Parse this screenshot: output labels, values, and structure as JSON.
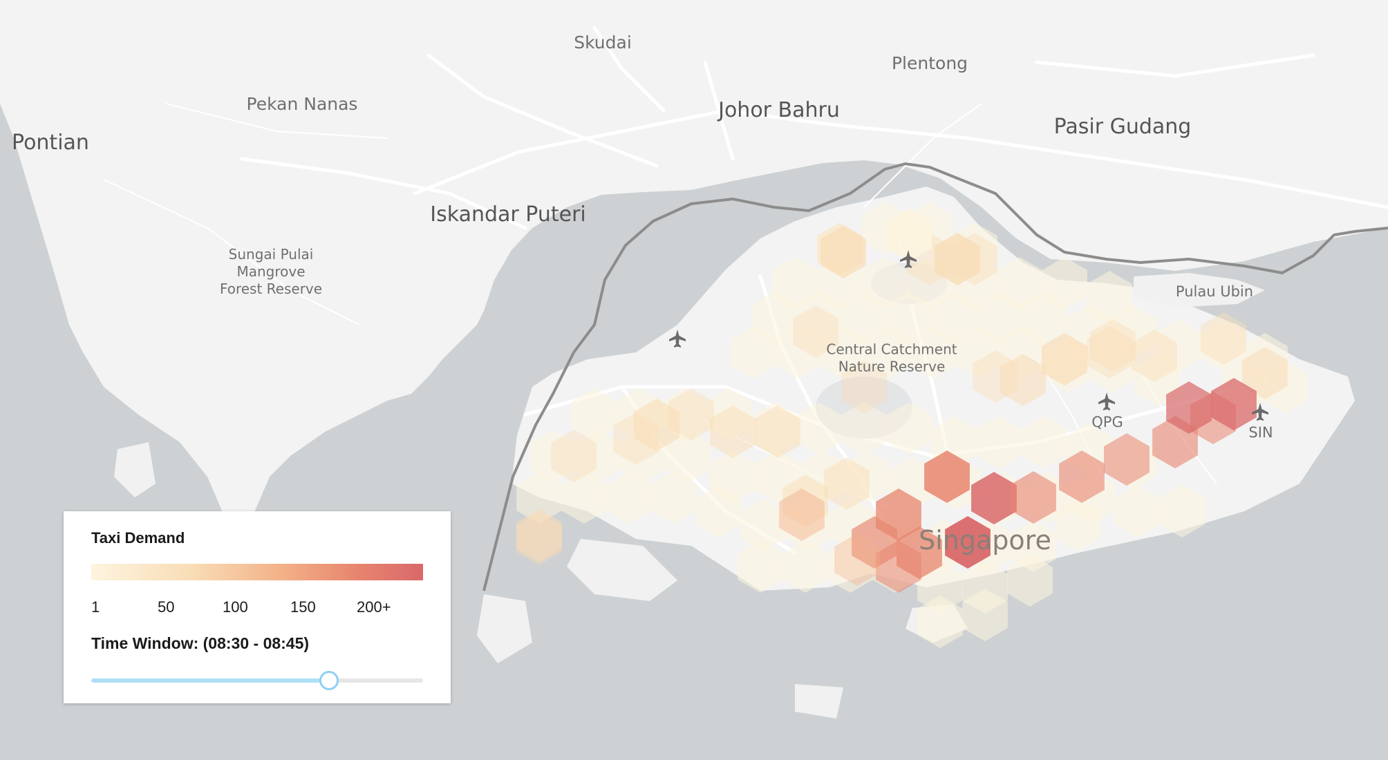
{
  "map": {
    "places": [
      {
        "key": "skudai",
        "label": "Skudai"
      },
      {
        "key": "plentong",
        "label": "Plentong"
      },
      {
        "key": "pekan-nanas",
        "label": "Pekan Nanas"
      },
      {
        "key": "johor-bahru",
        "label": "Johor Bahru"
      },
      {
        "key": "pasir-gudang",
        "label": "Pasir Gudang"
      },
      {
        "key": "pontian",
        "label": "Pontian"
      },
      {
        "key": "iskandar-puteri",
        "label": "Iskandar Puteri"
      },
      {
        "key": "pulau-ubin",
        "label": "Pulau Ubin"
      },
      {
        "key": "central-catchment",
        "label": [
          "Central Catchment",
          "Nature Reserve"
        ]
      },
      {
        "key": "sungai-pulai",
        "label": [
          "Sungai Pulai",
          "Mangrove",
          "Forest Reserve"
        ]
      },
      {
        "key": "qpg",
        "label": "QPG"
      },
      {
        "key": "sin",
        "label": "SIN"
      },
      {
        "key": "singapore",
        "label": "Singapore"
      }
    ],
    "airport_icons": [
      "airplane-icon",
      "airplane-icon",
      "airplane-icon",
      "airplane-icon"
    ],
    "colors": {
      "water": "#cdd1d3",
      "land": "#f3f3f3",
      "roads": "#ffffff",
      "border": "#8c8c8c",
      "label": "#6f6f6f",
      "label_major": "#555555"
    }
  },
  "legend": {
    "title": "Taxi Demand",
    "ticks": [
      "1",
      "50",
      "100",
      "150",
      "200+"
    ],
    "colors": [
      "#fdf4df",
      "#f9ddb6",
      "#f3b086",
      "#e7856f",
      "#d9686a"
    ]
  },
  "time_window": {
    "label": "Time Window: (08:30 - 08:45)",
    "slider_fraction": 0.715
  }
}
